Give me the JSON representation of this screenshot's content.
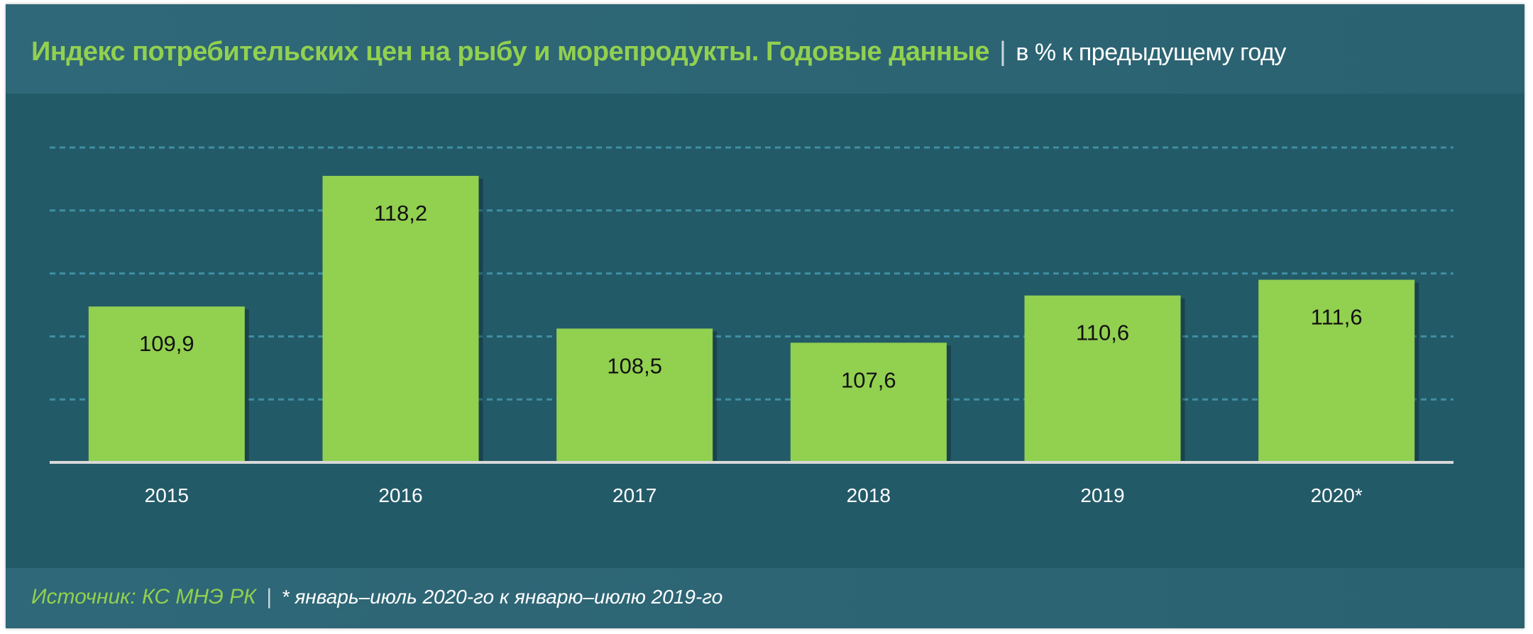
{
  "header": {
    "title": "Индекс потребительских цен на рыбу и морепродукты. Годовые данные",
    "separator": "|",
    "subtitle": "в % к предыдущему году"
  },
  "footer": {
    "source": "Источник: КС МНЭ РК",
    "separator": "|",
    "note": "* январь–июль 2020-го к январю–июлю 2019-го"
  },
  "colors": {
    "background": "#235a68",
    "bar": "#92d050",
    "title": "#92d050",
    "grid": "#3f8fa3"
  },
  "chart_data": {
    "type": "bar",
    "title": "Индекс потребительских цен на рыбу и морепродукты. Годовые данные",
    "subtitle": "в % к предыдущему году",
    "categories": [
      "2015",
      "2016",
      "2017",
      "2018",
      "2019",
      "2020*"
    ],
    "values": [
      109.9,
      118.2,
      108.5,
      107.6,
      110.6,
      111.6
    ],
    "value_labels": [
      "109,9",
      "118,2",
      "108,5",
      "107,6",
      "110,6",
      "111,6"
    ],
    "ylim": [
      100,
      120
    ],
    "grid": true,
    "grid_step": 4,
    "y_axis_labels_shown": false,
    "legend": "none"
  }
}
